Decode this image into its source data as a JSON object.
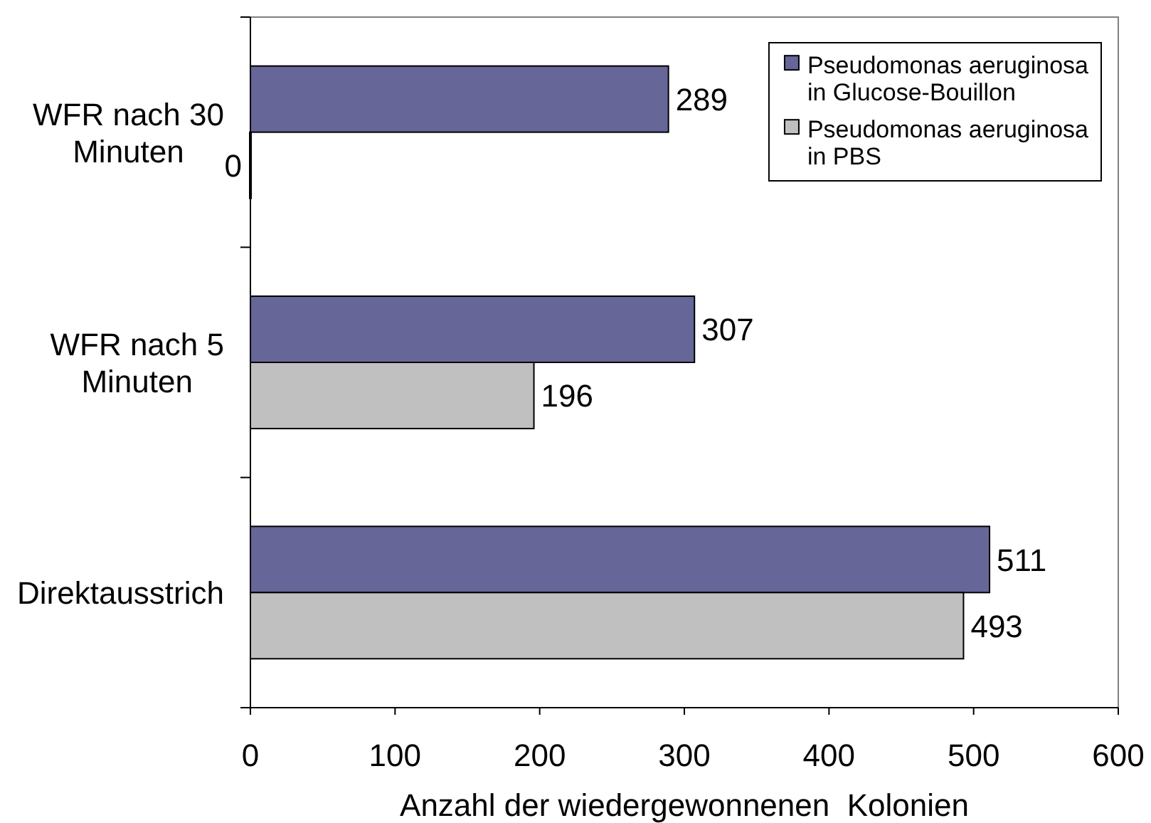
{
  "chart_data": {
    "type": "bar",
    "orientation": "horizontal",
    "categories": [
      "WFR nach 30 Minuten",
      "WFR nach 5 Minuten",
      "Direktausstrich"
    ],
    "series": [
      {
        "name": "Pseudomonas aeruginosa in Glucose-Bouillon",
        "color": "#666699",
        "values": [
          289,
          307,
          511
        ]
      },
      {
        "name": "Pseudomonas aeruginosa in PBS",
        "color": "#c0c0c0",
        "values": [
          0,
          196,
          493
        ]
      }
    ],
    "xlabel": "Anzahl der wiedergewonnenen  Kolonien",
    "xlim": [
      0,
      600
    ],
    "xticks": [
      0,
      100,
      200,
      300,
      400,
      500,
      600
    ],
    "legend": "top right",
    "data_labels": true
  }
}
